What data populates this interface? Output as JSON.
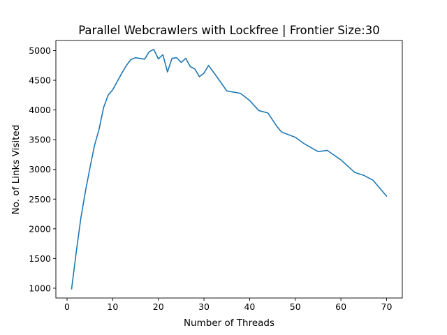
{
  "chart_data": {
    "type": "line",
    "title": "Parallel Webcrawlers with Lockfree | Frontier Size:30",
    "xlabel": "Number of Threads",
    "ylabel": "No. of Links Visited",
    "xlim": [
      -2.45,
      73.45
    ],
    "ylim": [
      835,
      5170
    ],
    "xticks": [
      0,
      10,
      20,
      30,
      40,
      50,
      60,
      70
    ],
    "yticks": [
      1000,
      1500,
      2000,
      2500,
      3000,
      3500,
      4000,
      4500,
      5000
    ],
    "grid": false,
    "line_color": "#1f77b4",
    "series": [
      {
        "x": [
          1,
          2,
          3,
          4,
          5,
          6,
          7,
          8,
          9,
          10,
          11,
          12,
          13,
          14,
          15,
          17,
          18,
          19,
          20,
          21,
          22,
          23,
          24,
          25,
          26,
          27,
          28,
          29,
          30,
          31,
          33,
          35,
          38,
          40,
          42,
          44,
          46,
          47,
          50,
          52,
          55,
          57,
          60,
          63,
          65,
          67,
          70
        ],
        "y": [
          990,
          1600,
          2170,
          2620,
          3020,
          3400,
          3670,
          4040,
          4250,
          4340,
          4480,
          4620,
          4750,
          4850,
          4880,
          4855,
          4980,
          5020,
          4860,
          4930,
          4640,
          4870,
          4880,
          4800,
          4870,
          4730,
          4690,
          4560,
          4620,
          4750,
          4540,
          4320,
          4280,
          4160,
          3990,
          3950,
          3720,
          3630,
          3540,
          3430,
          3300,
          3320,
          3160,
          2950,
          2900,
          2820,
          2550
        ]
      }
    ]
  }
}
